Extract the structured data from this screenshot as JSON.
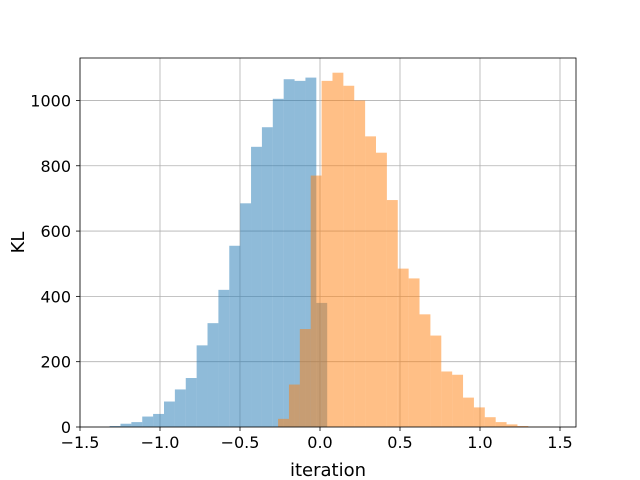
{
  "chart_data": {
    "type": "bar",
    "title": "",
    "xlabel": "iteration",
    "ylabel": "KL",
    "xlim": [
      -1.5,
      1.6
    ],
    "ylim": [
      0,
      1130
    ],
    "xticks": [
      -1.5,
      -1.0,
      -0.5,
      0.0,
      0.5,
      1.0,
      1.5
    ],
    "xtick_labels": [
      "−1.5",
      "−1.0",
      "−0.5",
      "0.0",
      "0.5",
      "1.0",
      "1.5"
    ],
    "yticks": [
      0,
      200,
      400,
      600,
      800,
      1000
    ],
    "ytick_labels": [
      "0",
      "200",
      "400",
      "600",
      "800",
      "1000"
    ],
    "grid": true,
    "legend": "none",
    "series": [
      {
        "color": "#1f77b4",
        "opacity": 0.5,
        "bin_width": 0.068,
        "bin_starts": [
          -1.315,
          -1.247,
          -1.179,
          -1.111,
          -1.043,
          -0.975,
          -0.907,
          -0.839,
          -0.771,
          -0.703,
          -0.635,
          -0.567,
          -0.499,
          -0.431,
          -0.363,
          -0.295,
          -0.227,
          -0.159,
          -0.091,
          -0.023
        ],
        "values": [
          3,
          10,
          15,
          32,
          40,
          78,
          115,
          150,
          250,
          318,
          420,
          555,
          685,
          858,
          918,
          1005,
          1065,
          1060,
          1070,
          380
        ]
      },
      {
        "color": "#ff7f0e",
        "opacity": 0.5,
        "bin_width": 0.068,
        "bin_starts": [
          -0.262,
          -0.194,
          -0.126,
          -0.058,
          0.01,
          0.078,
          0.146,
          0.214,
          0.282,
          0.35,
          0.418,
          0.486,
          0.554,
          0.622,
          0.69,
          0.758,
          0.826,
          0.894,
          0.962,
          1.03,
          1.098,
          1.166,
          1.234,
          1.302,
          1.37
        ],
        "values": [
          25,
          130,
          300,
          770,
          1060,
          1085,
          1045,
          1000,
          890,
          840,
          695,
          485,
          455,
          345,
          280,
          170,
          160,
          90,
          60,
          30,
          15,
          8,
          3,
          1,
          1
        ]
      }
    ]
  }
}
